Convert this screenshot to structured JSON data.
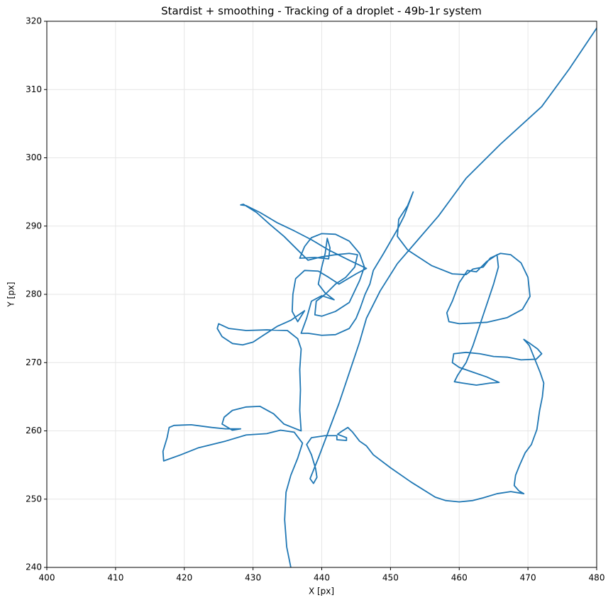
{
  "chart_data": {
    "type": "line",
    "title": "Stardist + smoothing - Tracking of a droplet - 49b-1r system",
    "x_label": "X [px]",
    "y_label": "Y [px]",
    "color": "#1f77b4",
    "grid": true,
    "xlim": [
      400,
      480
    ],
    "ylim": [
      240,
      320
    ],
    "xticks": [
      400,
      410,
      420,
      430,
      440,
      450,
      460,
      470,
      480
    ],
    "yticks": [
      240,
      250,
      260,
      270,
      280,
      290,
      300,
      310,
      320
    ],
    "x": [
      435.5,
      434.9,
      434.6,
      434.8,
      435.5,
      436.5,
      437.2,
      436,
      434,
      432,
      429,
      426,
      422,
      419.5,
      417,
      416.9,
      417.5,
      417.8,
      418.5,
      421,
      424,
      426,
      428.2,
      427,
      425.5,
      425.8,
      427,
      429,
      431,
      433,
      434.5,
      436,
      437,
      436.8,
      436.9,
      436.8,
      437,
      436.5,
      435,
      432,
      429,
      426.5,
      425,
      424.8,
      425.5,
      427,
      428.5,
      430,
      431.5,
      433.5,
      435.5,
      437.5,
      436.5,
      435.7,
      435.8,
      436.2,
      437.5,
      439.5,
      441,
      442.5,
      445,
      446.5,
      444,
      441,
      438.5,
      436,
      433.5,
      431,
      429,
      428.2,
      428.6,
      430.5,
      432.5,
      434.5,
      436.5,
      438,
      440,
      442,
      444,
      445.2,
      444.8,
      443.5,
      442,
      440.5,
      439.2,
      439,
      440,
      442,
      444,
      445.5,
      446.2,
      445.5,
      444,
      442,
      440,
      438.5,
      437.5,
      436.8,
      439,
      441,
      441.2,
      440.8,
      440.5,
      440,
      439.5,
      440.5,
      441.8,
      440,
      438.5,
      437.8,
      437,
      438,
      440,
      442,
      444,
      445,
      445.6,
      446.3,
      447,
      447.5,
      449,
      451,
      452,
      453.3,
      452.5,
      451.2,
      451,
      452.5,
      454,
      456,
      459,
      461,
      462,
      463.5,
      464.5,
      466,
      467.5,
      469,
      470,
      470.3,
      469.2,
      467,
      464,
      460,
      458.5,
      458.2,
      459,
      460,
      461.2,
      462.5,
      464,
      465.5,
      465.7,
      465,
      463.5,
      462,
      461,
      459.8,
      459.3,
      460.5,
      462.5,
      464.5,
      465.8,
      464,
      462,
      460,
      459,
      459.2,
      461,
      463,
      465,
      467,
      469,
      471.2,
      472,
      471.4,
      470.3,
      469.4,
      470.2,
      471,
      471.8,
      472.3,
      472.1,
      471.7,
      471.3,
      470.5,
      469.6,
      468.8,
      468.2,
      468,
      468.7,
      469.4,
      467.5,
      465.5,
      463.5,
      462,
      460,
      458,
      456.5,
      453,
      450,
      447.5,
      446.5,
      445.5,
      444.5,
      443.8,
      443,
      442.3,
      443.6,
      443.6,
      442.2,
      442.2,
      440.5,
      438.5,
      437.8,
      438.5,
      439.1,
      439.3,
      438.8,
      438.3,
      439.5,
      441,
      442.5,
      444,
      445.5,
      446.5,
      448.5,
      451,
      454,
      457,
      461,
      466,
      472,
      476,
      480
    ],
    "values": [
      240,
      243,
      247,
      251,
      253.5,
      256,
      258.2,
      259.8,
      260.1,
      259.6,
      259.4,
      258.5,
      257.5,
      256.5,
      255.6,
      257,
      259,
      260.5,
      260.8,
      260.9,
      260.5,
      260.3,
      260.3,
      260.1,
      261,
      262,
      263,
      263.5,
      263.6,
      262.5,
      261,
      260.4,
      260,
      263,
      266,
      269,
      272,
      273.5,
      274.7,
      274.8,
      274.7,
      275,
      275.7,
      275,
      273.8,
      272.8,
      272.6,
      273,
      274,
      275.3,
      276.2,
      277.6,
      276,
      277.5,
      280,
      282.3,
      283.5,
      283.4,
      282.5,
      281.5,
      283,
      283.8,
      285,
      286.5,
      288,
      289.3,
      290.5,
      292,
      293,
      293.1,
      293.2,
      292,
      290.2,
      288.5,
      286.5,
      285,
      285.5,
      285.8,
      286,
      285.8,
      284,
      282.5,
      281.5,
      280,
      279,
      277,
      276.8,
      277.5,
      278.8,
      282,
      284,
      286,
      287.8,
      288.8,
      288.9,
      288.3,
      287,
      285.3,
      285.4,
      285.2,
      286.8,
      288.2,
      286,
      284,
      281.5,
      280.2,
      279.2,
      279.8,
      279,
      276.5,
      274.3,
      274.3,
      274,
      274.1,
      275,
      276.5,
      278,
      280,
      281.5,
      283.5,
      286,
      289.5,
      291.5,
      295,
      293,
      291,
      288.5,
      286.5,
      285.5,
      284.2,
      283,
      282.9,
      283.7,
      284,
      285.3,
      286,
      285.8,
      284.6,
      282.5,
      279.7,
      277.8,
      276.6,
      275.9,
      275.7,
      276,
      277.3,
      279,
      281.7,
      283.5,
      283.3,
      284.8,
      285.8,
      284,
      281.5,
      277,
      272.5,
      270,
      268.2,
      267.2,
      267,
      266.7,
      267,
      267.1,
      267.9,
      268.6,
      269.3,
      270,
      271.3,
      271.5,
      271.3,
      270.9,
      270.8,
      270.4,
      270.5,
      271.3,
      272,
      272.8,
      273.4,
      272.5,
      270.5,
      268.5,
      267,
      265,
      263,
      260.2,
      258,
      256.8,
      255,
      253.5,
      252,
      251.2,
      250.8,
      251.1,
      250.8,
      250.2,
      249.8,
      249.6,
      249.8,
      250.3,
      252.5,
      254.6,
      256.5,
      257.8,
      258.5,
      259.8,
      260.5,
      260,
      259.5,
      259,
      258.6,
      258.7,
      259.3,
      259.3,
      259,
      258,
      256.5,
      254.5,
      253.2,
      252.3,
      253,
      256,
      260,
      264,
      268.5,
      273,
      276.5,
      280.5,
      284.5,
      288,
      291.5,
      297,
      302,
      307.5,
      313,
      319
    ]
  }
}
